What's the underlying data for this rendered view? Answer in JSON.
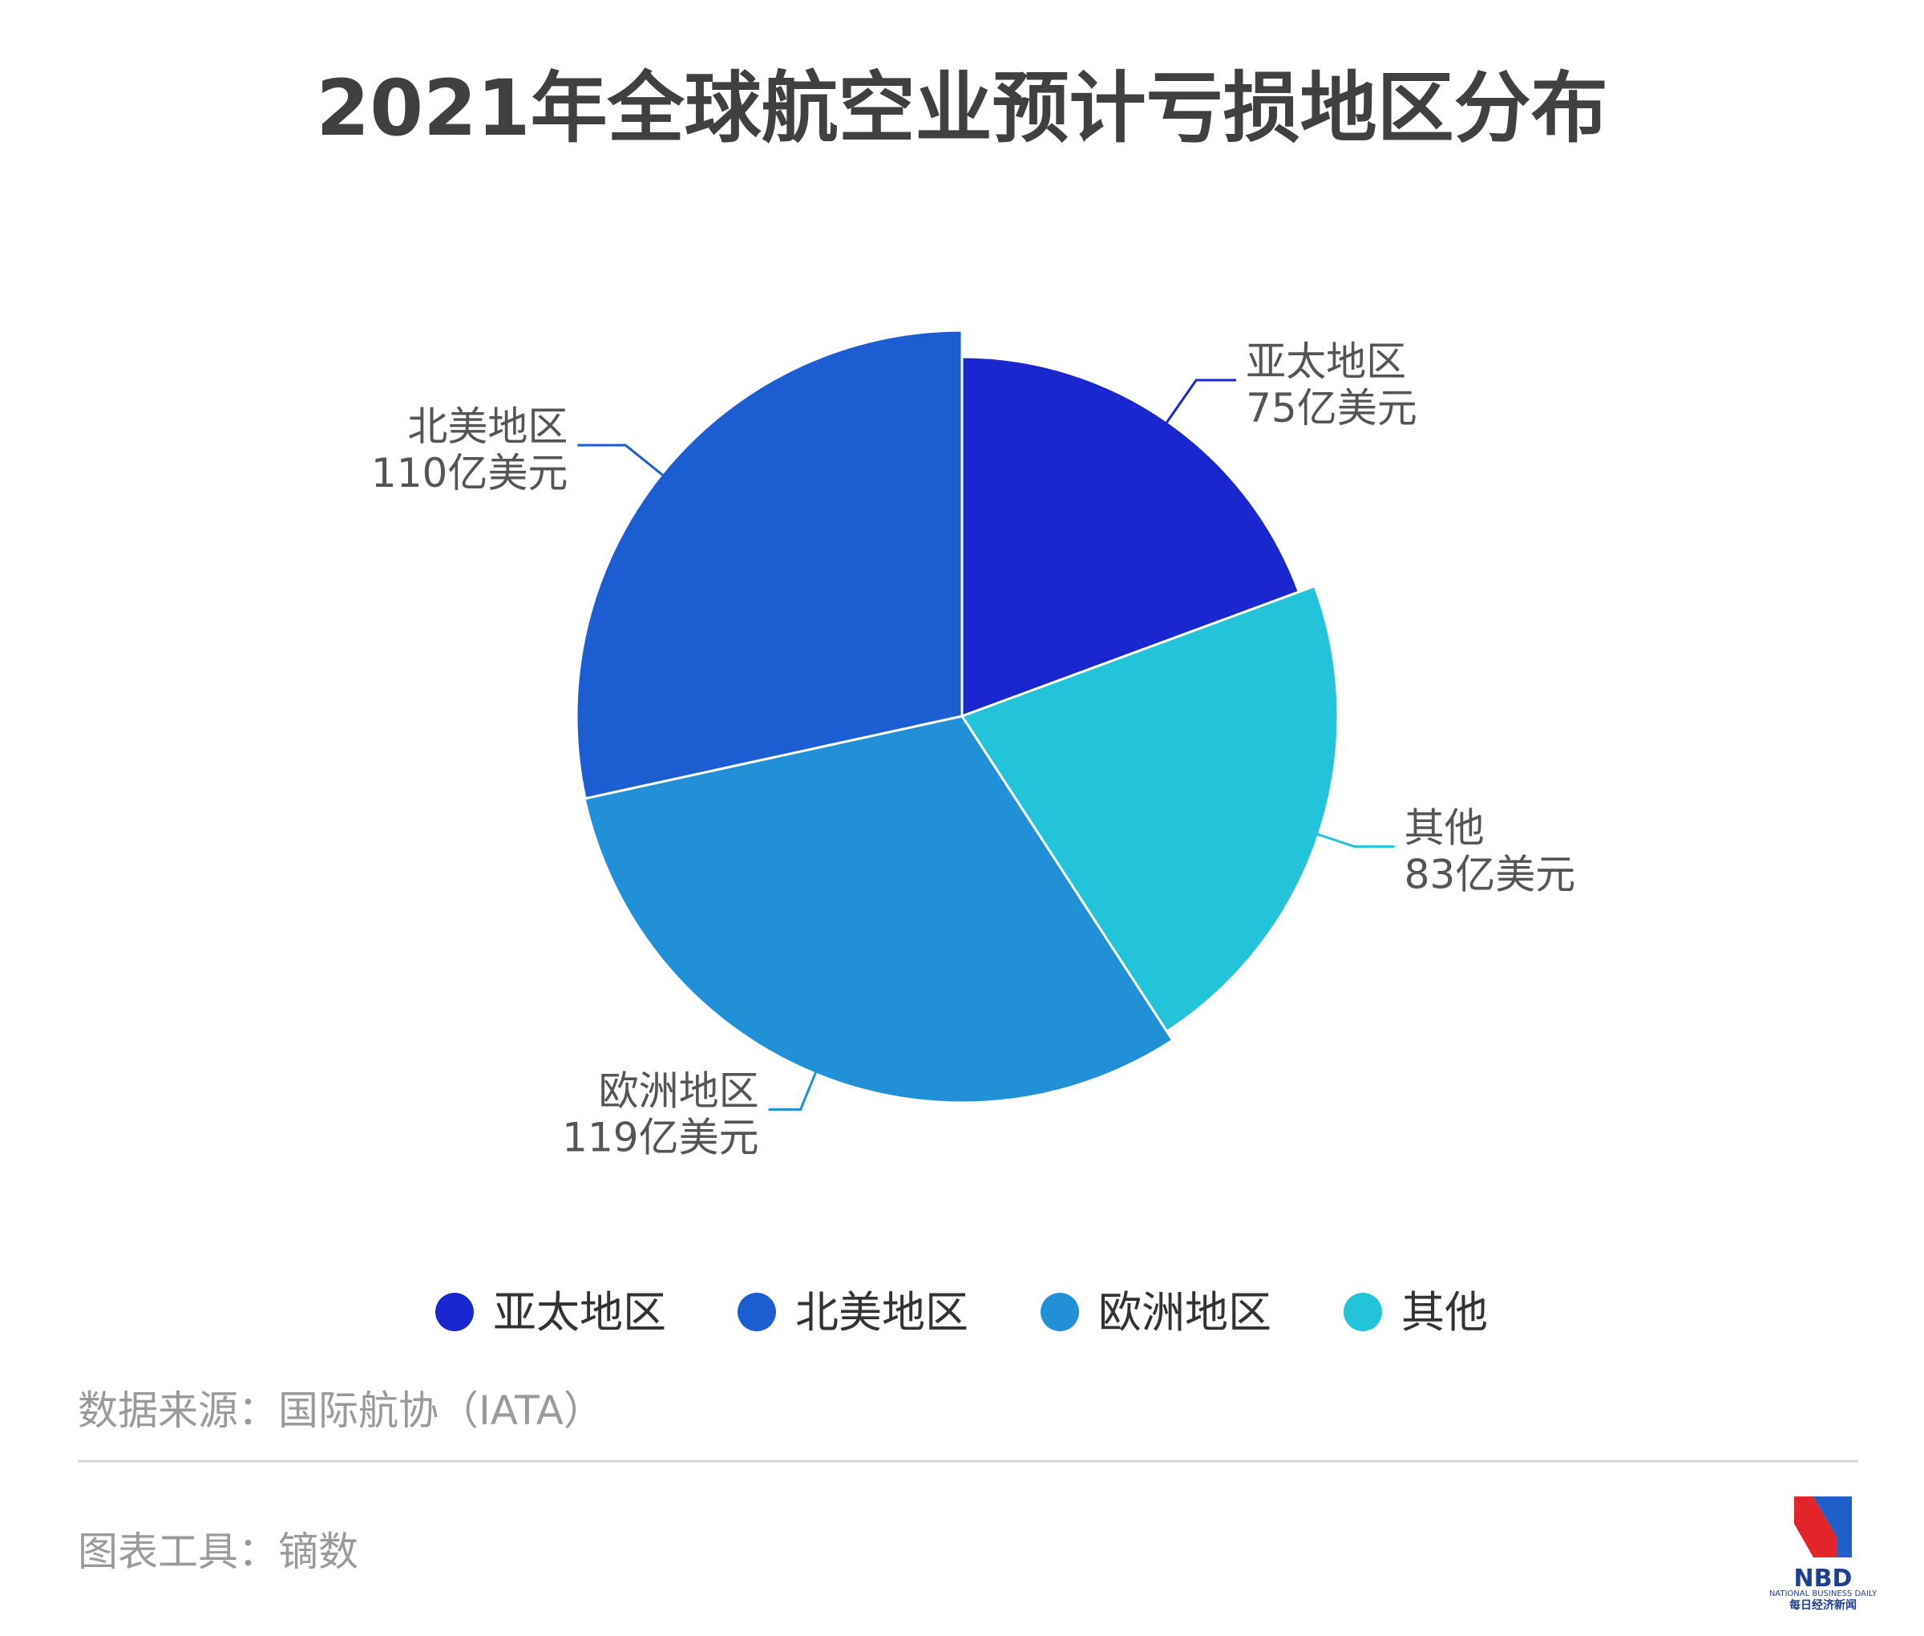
{
  "chart_data": {
    "type": "pie",
    "title": "2021年全球航空业预计亏损地区分布",
    "unit": "亿美元",
    "slices": [
      {
        "name": "亚太地区",
        "value": 75,
        "label": "75亿美元",
        "color": "#1a27cf"
      },
      {
        "name": "其他",
        "value": 83,
        "label": "83亿美元",
        "color": "#23c3d9"
      },
      {
        "name": "欧洲地区",
        "value": 119,
        "label": "119亿美元",
        "color": "#2290d6"
      },
      {
        "name": "北美地区",
        "value": 110,
        "label": "110亿美元",
        "color": "#1c5dd2"
      }
    ],
    "legend": [
      "亚太地区",
      "北美地区",
      "欧洲地区",
      "其他"
    ],
    "legend_position": "bottom"
  },
  "footer": {
    "source": "数据来源：国际航协（IATA）",
    "tool": "图表工具：镝数"
  },
  "logo": {
    "text": "NBD",
    "subtitle_en": "NATIONAL BUSINESS DAILY",
    "subtitle_cn": "每日经济新闻"
  }
}
